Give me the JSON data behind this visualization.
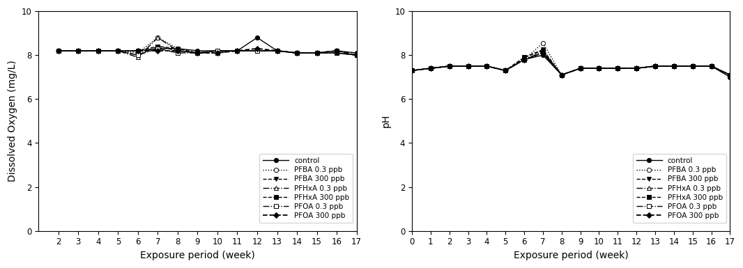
{
  "do_weeks": [
    2,
    3,
    4,
    5,
    6,
    7,
    8,
    9,
    10,
    11,
    12,
    13,
    14,
    15,
    16,
    17
  ],
  "ph_weeks": [
    0,
    1,
    2,
    3,
    4,
    5,
    6,
    7,
    8,
    9,
    10,
    11,
    12,
    13,
    14,
    15,
    16,
    17
  ],
  "do_series": {
    "control": [
      8.2,
      8.2,
      8.2,
      8.2,
      8.2,
      8.3,
      8.3,
      8.2,
      8.2,
      8.2,
      8.8,
      8.2,
      8.1,
      8.1,
      8.2,
      8.1
    ],
    "pfba_03": [
      8.2,
      8.2,
      8.2,
      8.2,
      8.1,
      8.8,
      8.3,
      8.1,
      8.2,
      8.2,
      8.2,
      8.2,
      8.1,
      8.1,
      8.1,
      8.0
    ],
    "pfba_300": [
      8.2,
      8.2,
      8.2,
      8.2,
      8.0,
      8.4,
      8.2,
      8.1,
      8.2,
      8.2,
      8.2,
      8.2,
      8.1,
      8.1,
      8.1,
      8.0
    ],
    "pfhxa_03": [
      8.2,
      8.2,
      8.2,
      8.2,
      7.9,
      8.8,
      8.2,
      8.1,
      8.2,
      8.2,
      8.2,
      8.2,
      8.1,
      8.1,
      8.1,
      8.0
    ],
    "pfhxa_300": [
      8.2,
      8.2,
      8.2,
      8.2,
      8.2,
      8.4,
      8.3,
      8.1,
      8.1,
      8.2,
      8.2,
      8.2,
      8.1,
      8.1,
      8.1,
      8.0
    ],
    "pfoa_03": [
      8.2,
      8.2,
      8.2,
      8.2,
      8.0,
      8.3,
      8.1,
      8.1,
      8.2,
      8.2,
      8.2,
      8.2,
      8.1,
      8.1,
      8.2,
      8.0
    ],
    "pfoa_300": [
      8.2,
      8.2,
      8.2,
      8.2,
      8.2,
      8.2,
      8.2,
      8.1,
      8.1,
      8.2,
      8.3,
      8.2,
      8.1,
      8.1,
      8.2,
      8.0
    ]
  },
  "ph_series": {
    "control": [
      7.3,
      7.4,
      7.5,
      7.5,
      7.5,
      7.3,
      7.8,
      8.0,
      7.1,
      7.4,
      7.4,
      7.4,
      7.4,
      7.5,
      7.5,
      7.5,
      7.5,
      7.0
    ],
    "pfba_03": [
      7.3,
      7.4,
      7.5,
      7.5,
      7.5,
      7.3,
      7.8,
      8.55,
      7.1,
      7.4,
      7.4,
      7.4,
      7.4,
      7.5,
      7.5,
      7.5,
      7.5,
      7.1
    ],
    "pfba_300": [
      7.3,
      7.4,
      7.5,
      7.5,
      7.5,
      7.3,
      7.9,
      8.25,
      7.1,
      7.4,
      7.4,
      7.4,
      7.4,
      7.5,
      7.5,
      7.5,
      7.5,
      7.1
    ],
    "pfhxa_03": [
      7.3,
      7.4,
      7.5,
      7.5,
      7.5,
      7.3,
      7.8,
      8.15,
      7.1,
      7.4,
      7.4,
      7.4,
      7.4,
      7.5,
      7.5,
      7.5,
      7.5,
      7.1
    ],
    "pfhxa_300": [
      7.3,
      7.4,
      7.5,
      7.5,
      7.5,
      7.3,
      7.9,
      8.2,
      7.1,
      7.4,
      7.4,
      7.4,
      7.4,
      7.5,
      7.5,
      7.5,
      7.5,
      7.1
    ],
    "pfoa_03": [
      7.3,
      7.4,
      7.5,
      7.5,
      7.5,
      7.3,
      7.8,
      8.1,
      7.1,
      7.4,
      7.4,
      7.4,
      7.4,
      7.5,
      7.5,
      7.5,
      7.5,
      7.1
    ],
    "pfoa_300": [
      7.3,
      7.4,
      7.5,
      7.5,
      7.5,
      7.3,
      7.8,
      8.1,
      7.1,
      7.4,
      7.4,
      7.4,
      7.4,
      7.5,
      7.5,
      7.5,
      7.5,
      7.1
    ]
  },
  "do_ylim": [
    0,
    10
  ],
  "do_yticks": [
    0,
    2,
    4,
    6,
    8,
    10
  ],
  "ph_ylim": [
    0,
    10
  ],
  "ph_yticks": [
    0,
    2,
    4,
    6,
    8,
    10
  ],
  "do_xlim": [
    1,
    17
  ],
  "do_xticks": [
    2,
    3,
    4,
    5,
    6,
    7,
    8,
    9,
    10,
    11,
    12,
    13,
    14,
    15,
    16,
    17
  ],
  "ph_xlim": [
    0,
    17
  ],
  "ph_xticks": [
    0,
    1,
    2,
    3,
    4,
    5,
    6,
    7,
    8,
    9,
    10,
    11,
    12,
    13,
    14,
    15,
    16,
    17
  ],
  "xlabel": "Exposure period (week)",
  "do_ylabel": "Dissolved Oxygen (mg/L)",
  "ph_ylabel": "pH",
  "legend_labels": [
    "control",
    "PFBA 0.3 ppb",
    "PFBA 300 ppb",
    "PFHxA 0.3 ppb",
    "PFHxA 300 ppb",
    "PFOA 0.3 ppb",
    "PFOA 300 ppb"
  ],
  "series_styles": [
    {
      "linestyle": "-",
      "marker": "o",
      "markerfacecolor": "black",
      "markersize": 4.5,
      "linewidth": 1.0,
      "color": "black"
    },
    {
      "linestyle": ":",
      "marker": "o",
      "markerfacecolor": "white",
      "markersize": 4.5,
      "linewidth": 1.0,
      "color": "black"
    },
    {
      "linestyle": "--",
      "marker": "v",
      "markerfacecolor": "black",
      "markersize": 4.5,
      "linewidth": 1.0,
      "color": "black"
    },
    {
      "linestyle": "-.",
      "marker": "^",
      "markerfacecolor": "white",
      "markersize": 5.0,
      "linewidth": 1.0,
      "color": "black"
    },
    {
      "linestyle": "--",
      "marker": "s",
      "markerfacecolor": "black",
      "markersize": 4.5,
      "linewidth": 1.0,
      "color": "black"
    },
    {
      "linestyle": "-.",
      "marker": "s",
      "markerfacecolor": "white",
      "markersize": 4.5,
      "linewidth": 1.0,
      "color": "black"
    },
    {
      "linestyle": "--",
      "marker": "D",
      "markerfacecolor": "black",
      "markersize": 4.0,
      "linewidth": 1.3,
      "color": "black"
    }
  ],
  "background_color": "#ffffff",
  "legend_fontsize": 7.5,
  "axis_label_fontsize": 10,
  "tick_fontsize": 8.5
}
